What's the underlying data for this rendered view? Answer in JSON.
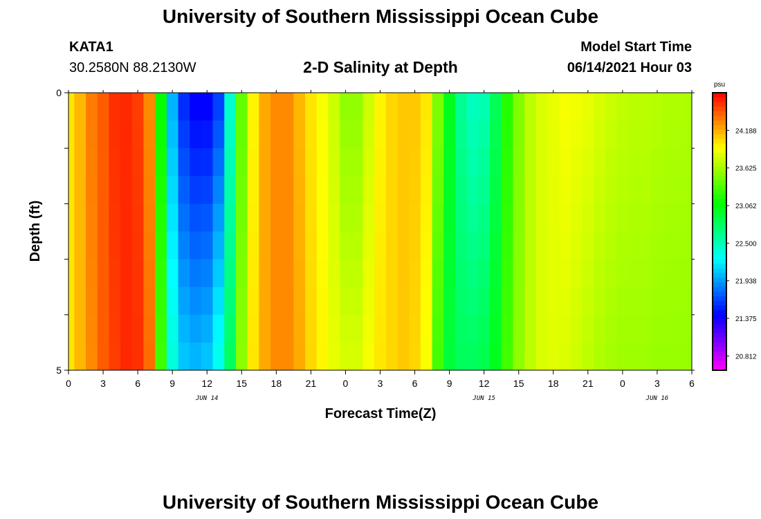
{
  "header": {
    "title": "University of Southern Mississippi Ocean Cube",
    "station": "KATA1",
    "location": "30.2580N  88.2130W",
    "subtitle": "2-D Salinity at Depth",
    "model_start_label": "Model Start Time",
    "model_start_value": "06/14/2021 Hour 03"
  },
  "footer": {
    "title": "University of Southern Mississippi Ocean Cube"
  },
  "chart_data": {
    "type": "heatmap",
    "xlabel": "Forecast Time(Z)",
    "ylabel": "Depth (ft)",
    "x_hours": [
      0,
      1,
      2,
      3,
      4,
      5,
      6,
      7,
      8,
      9,
      10,
      11,
      12,
      13,
      14,
      15,
      16,
      17,
      18,
      19,
      20,
      21,
      22,
      23,
      24,
      25,
      26,
      27,
      28,
      29,
      30,
      31,
      32,
      33,
      34,
      35,
      36,
      37,
      38,
      39,
      40,
      41,
      42,
      43,
      44,
      45,
      46,
      47,
      48,
      49,
      50,
      51,
      52,
      53,
      54
    ],
    "xlim": [
      0,
      54
    ],
    "x_tick_labels": [
      "0",
      "3",
      "6",
      "9",
      "12",
      "15",
      "18",
      "21",
      "0",
      "3",
      "6",
      "9",
      "12",
      "15",
      "18",
      "21",
      "0",
      "3",
      "6"
    ],
    "date_labels": [
      {
        "text": "JUN 14",
        "hour": 12
      },
      {
        "text": "JUN 15",
        "hour": 36
      },
      {
        "text": "JUN 16",
        "hour": 51
      }
    ],
    "y_depths": [
      0,
      0.5,
      1,
      1.5,
      2,
      2.5,
      3,
      3.5,
      4,
      4.5,
      5
    ],
    "ylim": [
      0,
      5
    ],
    "y_tick_labels": [
      "0",
      "5"
    ],
    "colorbar": {
      "unit": "psu",
      "levels": [
        "24.188",
        "23.625",
        "23.062",
        "22.500",
        "21.938",
        "21.375",
        "20.812"
      ],
      "min": 20.6,
      "max": 24.75
    },
    "surface_salinity": [
      24.0,
      24.15,
      24.35,
      24.45,
      24.6,
      24.62,
      24.55,
      24.3,
      23.1,
      22.0,
      21.55,
      21.4,
      21.4,
      21.6,
      22.4,
      23.4,
      23.95,
      24.2,
      24.3,
      24.3,
      24.15,
      24.0,
      23.9,
      23.75,
      23.55,
      23.55,
      23.75,
      23.95,
      24.05,
      24.1,
      24.1,
      24.0,
      23.5,
      23.0,
      22.6,
      22.45,
      22.5,
      22.8,
      23.2,
      23.5,
      23.7,
      23.8,
      23.85,
      23.9,
      23.88,
      23.85,
      23.8,
      23.75,
      23.72,
      23.7,
      23.7,
      23.68,
      23.66,
      23.66,
      23.65
    ],
    "bottom_salinity": [
      24.0,
      24.15,
      24.3,
      24.45,
      24.55,
      24.62,
      24.6,
      24.4,
      23.3,
      22.4,
      22.1,
      22.05,
      22.1,
      22.35,
      22.8,
      23.55,
      24.0,
      24.2,
      24.3,
      24.3,
      24.2,
      24.05,
      23.95,
      23.85,
      23.8,
      23.8,
      23.9,
      24.0,
      24.05,
      24.1,
      24.05,
      23.9,
      23.3,
      22.9,
      22.8,
      22.8,
      22.85,
      23.0,
      23.3,
      23.55,
      23.7,
      23.8,
      23.82,
      23.8,
      23.75,
      23.7,
      23.65,
      23.62,
      23.6,
      23.6,
      23.6,
      23.58,
      23.58,
      23.58,
      23.58
    ]
  }
}
